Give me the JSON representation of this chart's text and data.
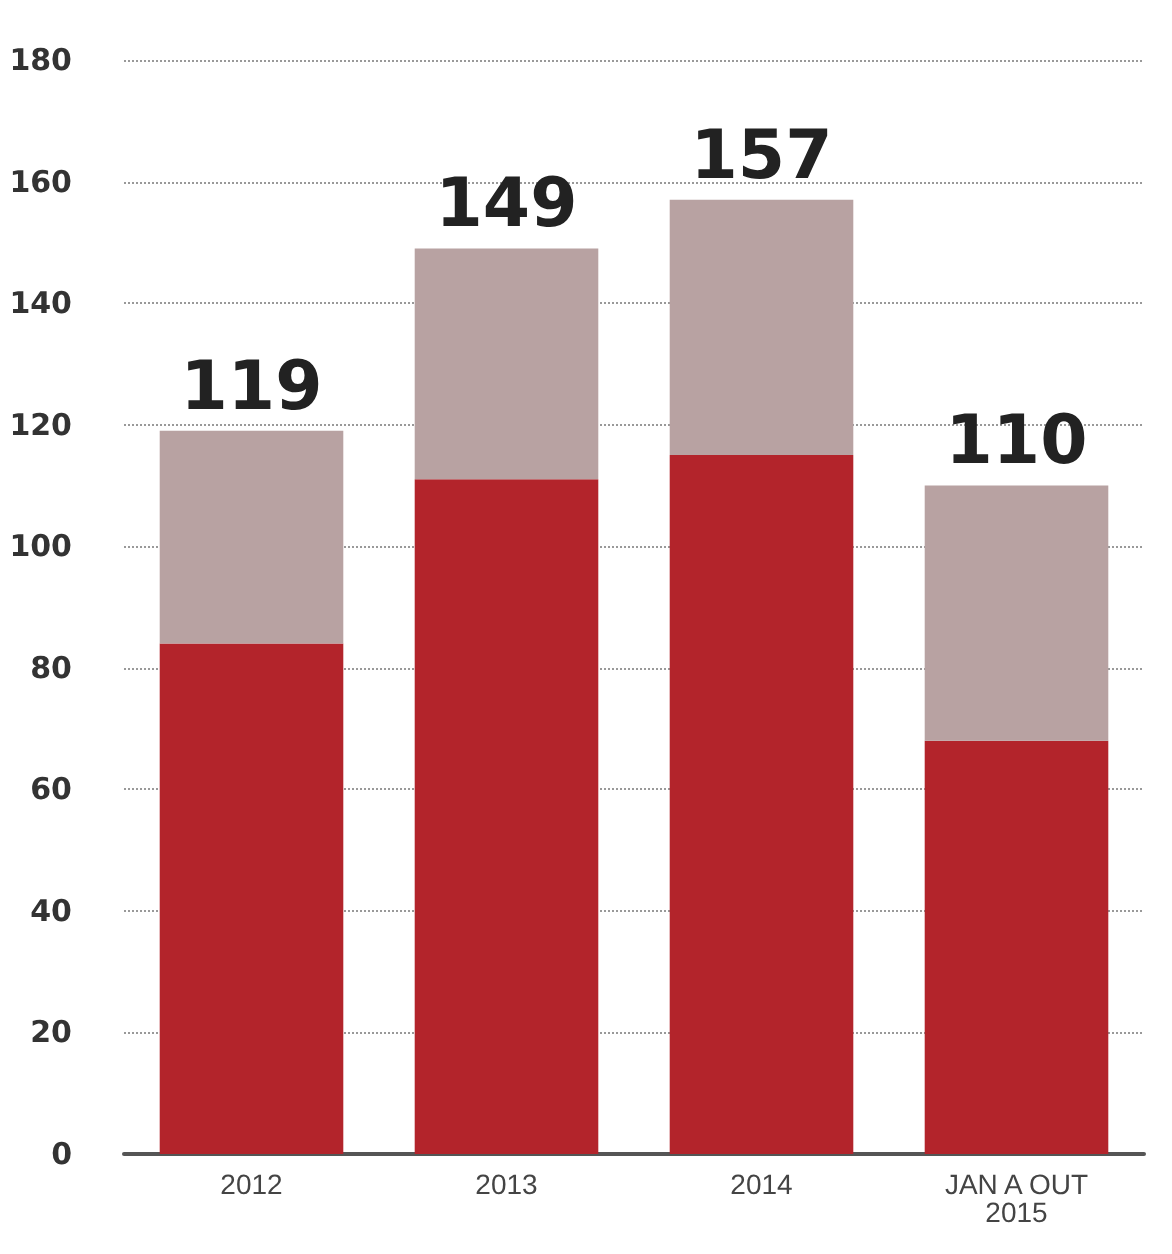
{
  "chart_data": {
    "type": "bar",
    "stacked": true,
    "categories": [
      "2012",
      "2013",
      "2014",
      "JAN A OUT\n2015"
    ],
    "series": [
      {
        "color": "#b3242b",
        "values": [
          84,
          111,
          115,
          68
        ]
      },
      {
        "color": "#b8a2a2",
        "values": [
          35,
          38,
          42,
          42
        ]
      }
    ],
    "totals": [
      "119",
      "149",
      "157",
      "110"
    ],
    "ylim": [
      0,
      180
    ],
    "yticks": [
      0,
      20,
      40,
      60,
      80,
      100,
      120,
      140,
      160,
      180
    ],
    "grid": "y"
  }
}
